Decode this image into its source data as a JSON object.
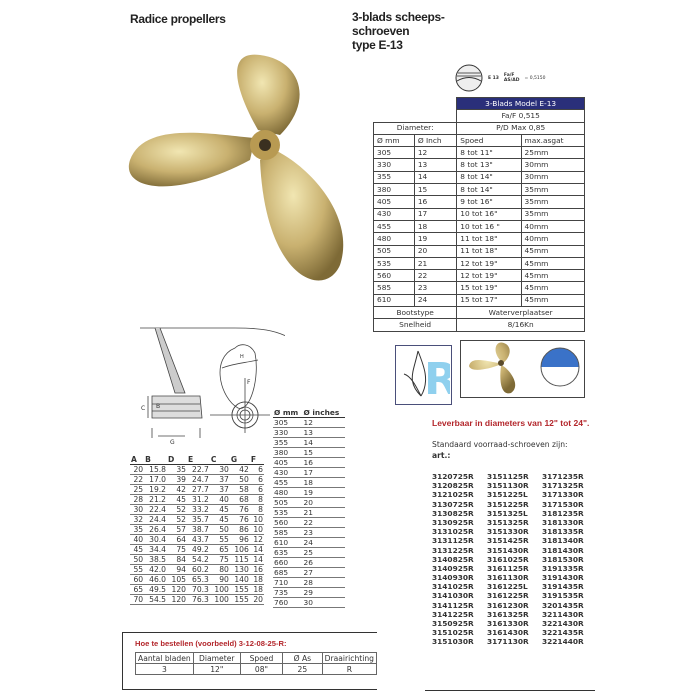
{
  "left_title": "Radice propellers",
  "right_title": [
    "3-blads scheeps-",
    "schroeven",
    "type E-13"
  ],
  "blade_icon": {
    "label": "E 13",
    "ratio_top": "Fa/F",
    "ratio_bottom": "AS/AD",
    "value": "= 0,5150"
  },
  "spec_table": {
    "header": "3-Blads Model E-13",
    "fa_f": "Fa/F 0,515",
    "diameter_label": "Diameter:",
    "pd": "P/D Max 0,85",
    "columns": [
      "Ø mm",
      "Ø Inch",
      "Spoed",
      "max.asgat"
    ],
    "rows": [
      [
        "305",
        "12",
        "8 tot 11\"",
        "25mm"
      ],
      [
        "330",
        "13",
        "8 tot 13\"",
        "30mm"
      ],
      [
        "355",
        "14",
        "8 tot 14\"",
        "30mm"
      ],
      [
        "380",
        "15",
        "8 tot 14\"",
        "35mm"
      ],
      [
        "405",
        "16",
        "9 tot 16\"",
        "35mm"
      ],
      [
        "430",
        "17",
        "10 tot 16\"",
        "35mm"
      ],
      [
        "455",
        "18",
        "10 tot 16 \"",
        "40mm"
      ],
      [
        "480",
        "19",
        "11 tot 18\"",
        "40mm"
      ],
      [
        "505",
        "20",
        "11 tot 18\"",
        "45mm"
      ],
      [
        "535",
        "21",
        "12 tot 19\"",
        "45mm"
      ],
      [
        "560",
        "22",
        "12 tot 19\"",
        "45mm"
      ],
      [
        "585",
        "23",
        "15 tot 19\"",
        "45mm"
      ],
      [
        "610",
        "24",
        "15 tot 17\"",
        "45mm"
      ]
    ],
    "boat_type_label": "Bootstype",
    "boat_type": "Waterverplaatser",
    "speed_label": "Snelheid",
    "speed": "8/16Kn",
    "rotation_letter": "R"
  },
  "drawing_labels": {
    "C": "C",
    "B": "B",
    "G": "G",
    "F": "F",
    "H": "H"
  },
  "dims_table": {
    "columns": [
      "A",
      "B",
      "D",
      "E",
      "C",
      "G",
      "F"
    ],
    "rows": [
      [
        "20",
        "15.8",
        "35",
        "22.7",
        "30",
        "42",
        "6"
      ],
      [
        "22",
        "17.0",
        "39",
        "24.7",
        "37",
        "50",
        "6"
      ],
      [
        "25",
        "19.2",
        "42",
        "27.7",
        "37",
        "58",
        "6"
      ],
      [
        "28",
        "21.2",
        "45",
        "31.2",
        "40",
        "68",
        "8"
      ],
      [
        "30",
        "22.4",
        "52",
        "33.2",
        "45",
        "76",
        "8"
      ],
      [
        "32",
        "24.4",
        "52",
        "35.7",
        "45",
        "76",
        "10"
      ],
      [
        "35",
        "26.4",
        "57",
        "38.7",
        "50",
        "86",
        "10"
      ],
      [
        "40",
        "30.4",
        "64",
        "43.7",
        "55",
        "96",
        "12"
      ],
      [
        "45",
        "34.4",
        "75",
        "49.2",
        "65",
        "106",
        "14"
      ],
      [
        "50",
        "38.5",
        "84",
        "54.2",
        "75",
        "115",
        "14"
      ],
      [
        "55",
        "42.0",
        "94",
        "60.2",
        "80",
        "130",
        "16"
      ],
      [
        "60",
        "46.0",
        "105",
        "65.3",
        "90",
        "140",
        "18"
      ],
      [
        "65",
        "49.5",
        "120",
        "70.3",
        "100",
        "155",
        "18"
      ],
      [
        "70",
        "54.5",
        "120",
        "76.3",
        "100",
        "155",
        "20"
      ]
    ]
  },
  "conversion_table": {
    "columns": [
      "Ø mm",
      "Ø inches"
    ],
    "rows": [
      [
        "305",
        "12"
      ],
      [
        "330",
        "13"
      ],
      [
        "355",
        "14"
      ],
      [
        "380",
        "15"
      ],
      [
        "405",
        "16"
      ],
      [
        "430",
        "17"
      ],
      [
        "455",
        "18"
      ],
      [
        "480",
        "19"
      ],
      [
        "505",
        "20"
      ],
      [
        "535",
        "21"
      ],
      [
        "560",
        "22"
      ],
      [
        "585",
        "23"
      ],
      [
        "610",
        "24"
      ],
      [
        "635",
        "25"
      ],
      [
        "660",
        "26"
      ],
      [
        "685",
        "27"
      ],
      [
        "710",
        "28"
      ],
      [
        "735",
        "29"
      ],
      [
        "760",
        "30"
      ]
    ]
  },
  "availability": "Leverbaar in diameters van 12\" tot 24\".",
  "stock_intro": "Standaard voorraad-schroeven zijn:",
  "art_label": "art.:",
  "articles": [
    [
      "3120725R",
      "3151125R",
      "3171235R"
    ],
    [
      "3120825R",
      "3151130R",
      "3171325R"
    ],
    [
      "3121025R",
      "3151225L",
      "3171330R"
    ],
    [
      "3130725R",
      "3151225R",
      "3171530R"
    ],
    [
      "3130825R",
      "3151325L",
      "3181235R"
    ],
    [
      "3130925R",
      "3151325R",
      "3181330R"
    ],
    [
      "3131025R",
      "3151330R",
      "3181335R"
    ],
    [
      "3131125R",
      "3151425R",
      "3181340R"
    ],
    [
      "3131225R",
      "3151430R",
      "3181430R"
    ],
    [
      "3140825R",
      "3161025R",
      "3181530R"
    ],
    [
      "3140925R",
      "3161125R",
      "3191335R"
    ],
    [
      "3140930R",
      "3161130R",
      "3191430R"
    ],
    [
      "3141025R",
      "3161225L",
      "3191435R"
    ],
    [
      "3141030R",
      "3161225R",
      "3191535R"
    ],
    [
      "3141125R",
      "3161230R",
      "3201435R"
    ],
    [
      "3141225R",
      "3161325R",
      "3211430R"
    ],
    [
      "3150925R",
      "3161330R",
      "3221430R"
    ],
    [
      "3151025R",
      "3161430R",
      "3221435R"
    ],
    [
      "3151030R",
      "3171130R",
      "3221440R"
    ]
  ],
  "order": {
    "title": "Hoe te bestellen (voorbeeld) 3-12-08-25-R:",
    "columns": [
      "Aantal bladen",
      "Diameter",
      "Spoed",
      "Ø As",
      "Draairichting"
    ],
    "values": [
      "3",
      "12\"",
      "08\"",
      "25",
      "R"
    ]
  },
  "colors": {
    "header_blue": "#2a2f7a",
    "accent_red": "#b3262b",
    "brass": "#c9b170",
    "icon_blue": "#3a72c8",
    "r_logo": "#8fd0ee"
  }
}
